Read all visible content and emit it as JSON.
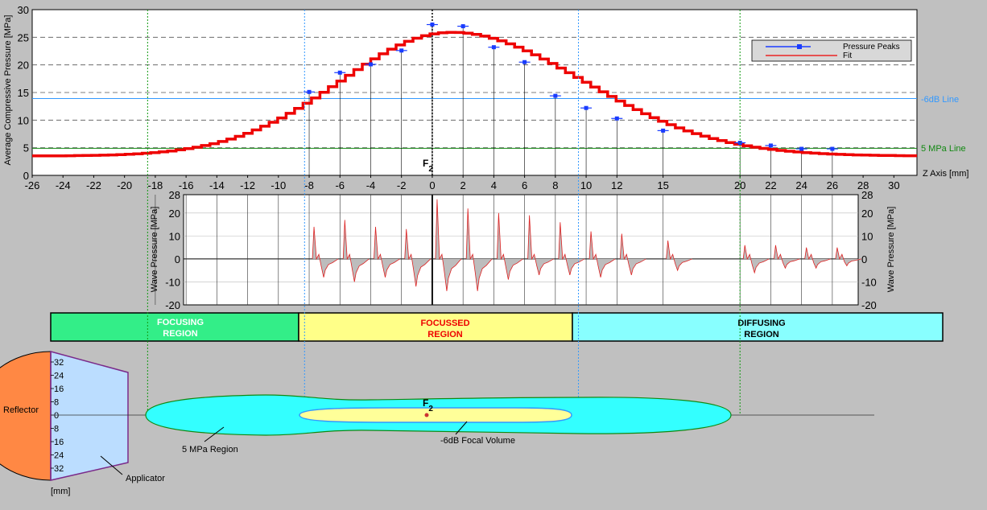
{
  "chart_data": [
    {
      "type": "scatter",
      "ylabel": "Average Compressive Pressure [MPa]",
      "xlabel": "Z Axis [mm]",
      "xlim": [
        -26,
        31.5
      ],
      "ylim": [
        0,
        30
      ],
      "x_ticks": [
        -26,
        -24,
        -22,
        -20,
        -18,
        -16,
        -14,
        -12,
        -10,
        -8,
        -6,
        -4,
        -2,
        0,
        2,
        4,
        6,
        8,
        10,
        12,
        15,
        20,
        22,
        24,
        26,
        28,
        30
      ],
      "y_ticks": [
        0,
        5,
        10,
        15,
        20,
        25,
        30
      ],
      "grid": "horizontal dashed",
      "legend_position": "top-right",
      "series": [
        {
          "name": "Pressure Peaks",
          "color": "#1a3cff",
          "points": [
            {
              "x": -8,
              "y": 15.1
            },
            {
              "x": -6,
              "y": 18.6
            },
            {
              "x": -4,
              "y": 20.1
            },
            {
              "x": -2,
              "y": 22.6
            },
            {
              "x": 0,
              "y": 27.3
            },
            {
              "x": 2,
              "y": 27.0
            },
            {
              "x": 4,
              "y": 23.2
            },
            {
              "x": 6,
              "y": 20.5
            },
            {
              "x": 8,
              "y": 14.4
            },
            {
              "x": 10,
              "y": 12.2
            },
            {
              "x": 12,
              "y": 10.3
            },
            {
              "x": 15,
              "y": 8.1
            },
            {
              "x": 20,
              "y": 5.9
            },
            {
              "x": 22,
              "y": 5.4
            },
            {
              "x": 24,
              "y": 4.8
            },
            {
              "x": 26,
              "y": 4.8
            }
          ]
        },
        {
          "name": "Fit",
          "color": "#ee0000",
          "peak_x": 1.0,
          "peak_y": 25.9,
          "baseline_y": 3.5
        }
      ],
      "reference_lines": [
        {
          "name": "-6dB Line",
          "y": 13.9,
          "color": "#3399ff"
        },
        {
          "name": "5 MPa Line",
          "y": 4.9,
          "color": "#118811"
        }
      ],
      "vertical_markers": [
        {
          "x": -18.5,
          "color": "#119911",
          "style": "dotted"
        },
        {
          "x": -8.3,
          "color": "#3399ff",
          "style": "dotted"
        },
        {
          "x": 9.5,
          "color": "#3399ff",
          "style": "dotted"
        },
        {
          "x": 20.0,
          "color": "#119911",
          "style": "dotted"
        }
      ],
      "focus_label": "F",
      "focus_subscript": "2"
    },
    {
      "type": "line",
      "ylabel": "Wave Pressure [MPa]",
      "ylim": [
        -20,
        28
      ],
      "y_ticks": [
        28,
        20,
        10,
        0,
        -10,
        -20
      ],
      "waveform_positions": [
        -8,
        -6,
        -4,
        -2,
        0,
        2,
        4,
        6,
        8,
        10,
        12,
        15,
        20,
        22,
        24,
        26
      ],
      "waveform_peaks": [
        14,
        17,
        14,
        13,
        26,
        22,
        20,
        19,
        16,
        12,
        11,
        8,
        6,
        6,
        5,
        5
      ],
      "waveform_troughs": [
        -8,
        -10,
        -8,
        -12,
        -14,
        -14,
        -9,
        -7,
        -7,
        -8,
        -7,
        -5,
        -6,
        -4,
        -4,
        -3
      ]
    }
  ],
  "regions": [
    {
      "label_line1": "FOCUSING",
      "label_line2": "REGION",
      "fill": "#33ee88",
      "text_color": "#ffffff"
    },
    {
      "label_line1": "FOCUSSED",
      "label_line2": "REGION",
      "fill": "#ffff88",
      "text_color": "#ee0000"
    },
    {
      "label_line1": "DIFFUSING",
      "label_line2": "REGION",
      "fill": "#88ffff",
      "text_color": "#000000"
    }
  ],
  "schematic": {
    "reflector_label": "Reflector",
    "applicator_label": "Applicator",
    "scale_labels": [
      "32",
      "24",
      "16",
      "8",
      "0",
      "8",
      "16",
      "24",
      "32"
    ],
    "unit_label": "[mm]",
    "region_5mpa_label": "5 MPa Region",
    "focal_volume_label": "-6dB Focal Volume",
    "focus_label": "F",
    "focus_subscript": "2",
    "colors": {
      "reflector": "#ff8844",
      "applicator": "#bbddff",
      "region_5mpa": "#33ffff",
      "focal_volume": "#ffff99"
    }
  }
}
